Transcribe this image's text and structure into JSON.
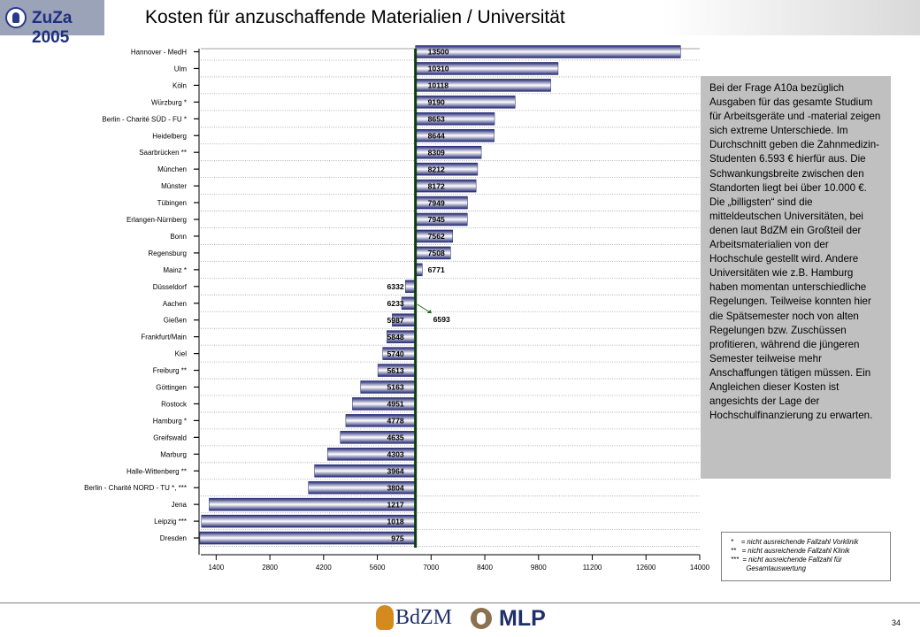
{
  "header": {
    "logo_text": "ZuZa 2005",
    "title": "Kosten für anzuschaffende Materialien / Universität"
  },
  "note": {
    "text": "Bei der Frage A10a bezüglich Ausgaben für das gesamte Studium für Arbeitsgeräte und -material zeigen sich extreme Unterschiede. Im Durchschnitt geben die Zahnmedizin-Studenten 6.593 € hierfür aus. Die Schwankungsbreite zwischen den Standorten liegt bei über 10.000 €. Die „billigsten“ sind die mitteldeutschen Universitäten, bei denen laut BdZM ein Großteil der Arbeitsmaterialien von der Hochschule gestellt wird. Andere Universitäten wie z.B. Hamburg haben momentan unterschiedliche Regelungen. Teilweise konnten hier die Spätsemester noch von alten Regelungen bzw. Zuschüssen profitieren, während die jüngeren Semester teilweise mehr Anschaffungen tätigen müssen. Ein Angleichen dieser Kosten ist angesichts der Lage der Hochschulfinanzierung zu erwarten."
  },
  "legend": {
    "text": "*    = nicht ausreichende Fallzahl Vorklinik\n**   = nicht ausreichende Fallzahl Klinik\n***  = nicht ausreichende Fallzahl für\n        Gesamtauswertung"
  },
  "footer": {
    "bdzm_text": "BdZM",
    "mlp_text": "MLP",
    "page_number": "34"
  },
  "chart_data": {
    "type": "bar",
    "orientation": "horizontal",
    "baseline": 6593,
    "mean_label": "6593",
    "categories": [
      "Hannover - MedH",
      "Ulm",
      "Köln",
      "Würzburg *",
      "Berlin - Charité SÜD - FU *",
      "Heidelberg",
      "Saarbrücken **",
      "München",
      "Münster",
      "Tübingen",
      "Erlangen-Nürnberg",
      "Bonn",
      "Regensburg",
      "Mainz *",
      "Düsseldorf",
      "Aachen",
      "Gießen",
      "Frankfurt/Main",
      "Kiel",
      "Freiburg **",
      "Göttingen",
      "Rostock",
      "Hamburg *",
      "Greifswald",
      "Marburg",
      "Halle-Wittenberg **",
      "Berlin - Charité NORD - TU *, ***",
      "Jena",
      "Leipzig ***",
      "Dresden"
    ],
    "values": [
      13500,
      10310,
      10118,
      9190,
      8653,
      8644,
      8309,
      8212,
      8172,
      7949,
      7945,
      7562,
      7508,
      6771,
      6332,
      6233,
      5987,
      5848,
      5740,
      5613,
      5163,
      4951,
      4778,
      4635,
      4303,
      3964,
      3804,
      1217,
      1018,
      975
    ],
    "xlim": [
      1000,
      14000
    ],
    "x_ticks": [
      1400,
      2800,
      4200,
      5600,
      7000,
      8400,
      9800,
      11200,
      12600,
      14000
    ],
    "grid": true,
    "bar_gradient": [
      "#1f2470",
      "#ffffff"
    ],
    "mean_line_color": "#0f3b0f"
  }
}
